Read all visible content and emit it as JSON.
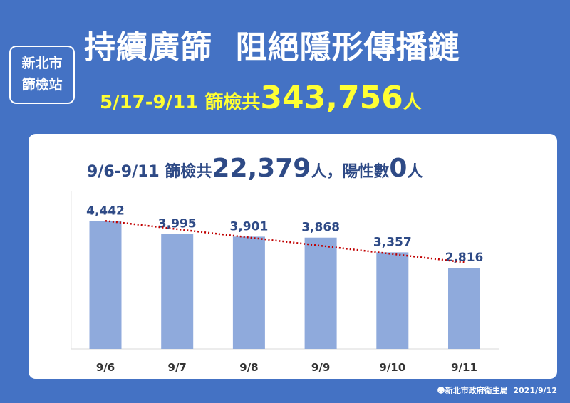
{
  "badge": {
    "line1": "新北市",
    "line2": "篩檢站"
  },
  "header": {
    "title": "持續廣篩  阻絕隱形傳播鏈",
    "period": "5/17-9/11 篩檢共",
    "total": "343,756",
    "unit": "人"
  },
  "card": {
    "period": "9/6-9/11 篩檢共",
    "total": "22,379",
    "unit_positive": "人，陽性數",
    "positive": "0",
    "unit": "人"
  },
  "footer": {
    "org_icon": "health-bureau-logo-icon",
    "org": "新北市政府衛生局",
    "date": "2021/9/12"
  },
  "colors": {
    "background": "#4472c4",
    "bar": "#8faadc",
    "label": "#2e4a86",
    "trend": "#c00000",
    "subtitle": "#ffff33"
  },
  "chart_data": {
    "type": "bar",
    "categories": [
      "9/6",
      "9/7",
      "9/8",
      "9/9",
      "9/10",
      "9/11"
    ],
    "values": [
      4442,
      3995,
      3901,
      3868,
      3357,
      2816
    ],
    "data_labels": [
      "4,442",
      "3,995",
      "3,901",
      "3,868",
      "3,357",
      "2,816"
    ],
    "ylim": [
      0,
      5000
    ],
    "grid": false,
    "trendline": "linear, dotted",
    "xlabel": "",
    "ylabel": ""
  }
}
